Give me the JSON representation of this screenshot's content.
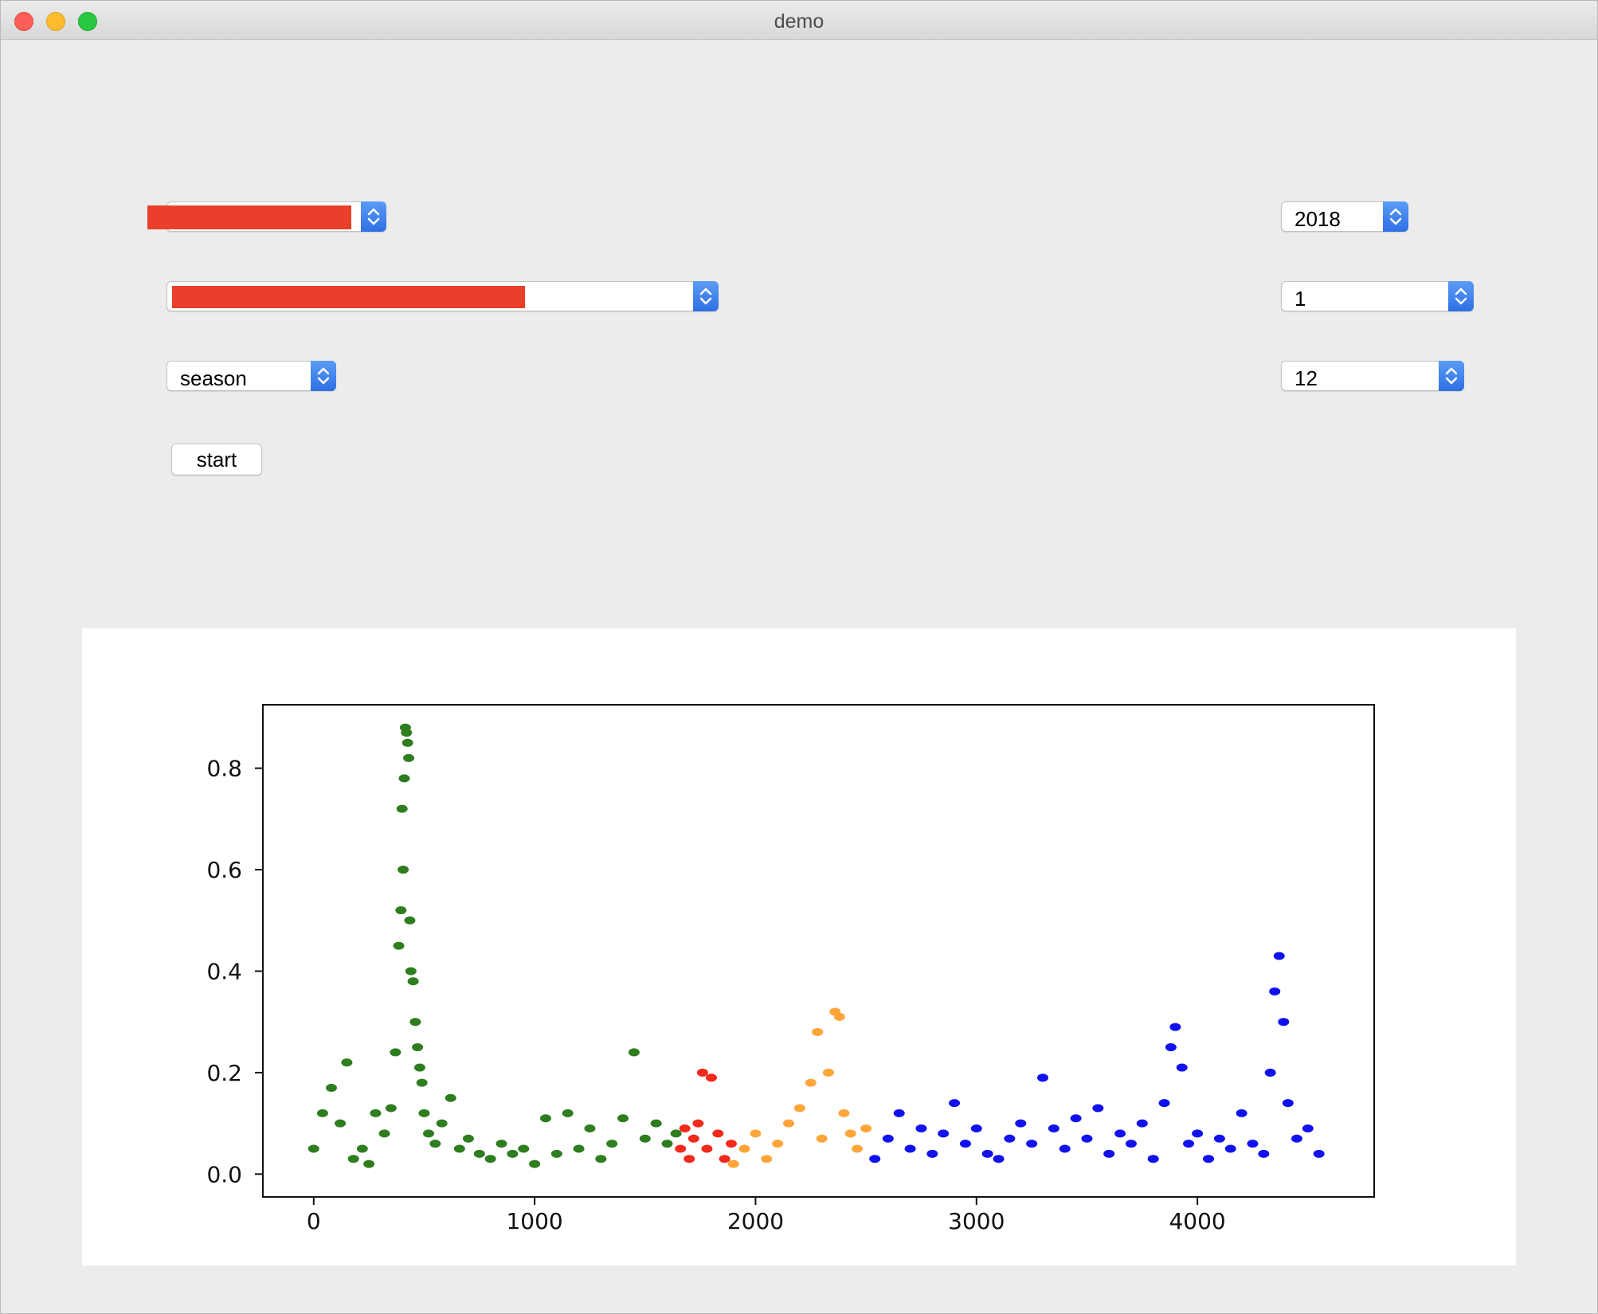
{
  "window": {
    "title": "demo"
  },
  "controls": {
    "left": {
      "select1": {
        "value": ""
      },
      "select2": {
        "value": ""
      },
      "group_select": {
        "value": "season"
      },
      "start_button": "start"
    },
    "right": {
      "year_select": {
        "value": "2018"
      },
      "month_start_select": {
        "value": "1"
      },
      "month_end_select": {
        "value": "12"
      }
    }
  },
  "colors": {
    "red_redaction": "#ea3f2a",
    "accent_blue": "#3478f6"
  },
  "chart_data": {
    "type": "scatter",
    "xlim": [
      -230,
      4800
    ],
    "ylim": [
      -0.045,
      0.925
    ],
    "xticks": [
      0,
      1000,
      2000,
      3000,
      4000
    ],
    "xtick_labels": [
      "0",
      "1000",
      "2000",
      "3000",
      "4000"
    ],
    "yticks": [
      0.0,
      0.2,
      0.4,
      0.6,
      0.8
    ],
    "ytick_labels": [
      "0.0",
      "0.2",
      "0.4",
      "0.6",
      "0.8"
    ],
    "grid": false,
    "series": [
      {
        "color": "#2e7d1f",
        "x": [
          0,
          40,
          80,
          120,
          150,
          180,
          220,
          250,
          280,
          320,
          350,
          370,
          385,
          395,
          400,
          405,
          410,
          415,
          420,
          425,
          430,
          435,
          440,
          450,
          460,
          470,
          480,
          490,
          500,
          520,
          550,
          580,
          620,
          660,
          700,
          750,
          800,
          850,
          900,
          950,
          1000,
          1050,
          1100,
          1150,
          1200,
          1250,
          1300,
          1350,
          1400,
          1450,
          1500,
          1550,
          1600,
          1640
        ],
        "y": [
          0.05,
          0.12,
          0.17,
          0.1,
          0.22,
          0.03,
          0.05,
          0.02,
          0.12,
          0.08,
          0.13,
          0.24,
          0.45,
          0.52,
          0.72,
          0.6,
          0.78,
          0.88,
          0.87,
          0.85,
          0.82,
          0.5,
          0.4,
          0.38,
          0.3,
          0.25,
          0.21,
          0.18,
          0.12,
          0.08,
          0.06,
          0.1,
          0.15,
          0.05,
          0.07,
          0.04,
          0.03,
          0.06,
          0.04,
          0.05,
          0.02,
          0.11,
          0.04,
          0.12,
          0.05,
          0.09,
          0.03,
          0.06,
          0.11,
          0.24,
          0.07,
          0.1,
          0.06,
          0.08
        ]
      },
      {
        "color": "#f22a1c",
        "x": [
          1660,
          1680,
          1700,
          1720,
          1740,
          1760,
          1780,
          1800,
          1830,
          1860,
          1890
        ],
        "y": [
          0.05,
          0.09,
          0.03,
          0.07,
          0.1,
          0.2,
          0.05,
          0.19,
          0.08,
          0.03,
          0.06
        ]
      },
      {
        "color": "#ffa53a",
        "x": [
          1900,
          1950,
          2000,
          2050,
          2100,
          2150,
          2200,
          2250,
          2280,
          2300,
          2330,
          2360,
          2380,
          2400,
          2430,
          2460,
          2500
        ],
        "y": [
          0.02,
          0.05,
          0.08,
          0.03,
          0.06,
          0.1,
          0.13,
          0.18,
          0.28,
          0.07,
          0.2,
          0.32,
          0.31,
          0.12,
          0.08,
          0.05,
          0.09
        ]
      },
      {
        "color": "#1111ee",
        "x": [
          2540,
          2600,
          2650,
          2700,
          2750,
          2800,
          2850,
          2900,
          2950,
          3000,
          3050,
          3100,
          3150,
          3200,
          3250,
          3300,
          3350,
          3400,
          3450,
          3500,
          3550,
          3600,
          3650,
          3700,
          3750,
          3800,
          3850,
          3880,
          3900,
          3930,
          3960,
          4000,
          4050,
          4100,
          4150,
          4200,
          4250,
          4300,
          4330,
          4350,
          4370,
          4390,
          4410,
          4450,
          4500,
          4550
        ],
        "y": [
          0.03,
          0.07,
          0.12,
          0.05,
          0.09,
          0.04,
          0.08,
          0.14,
          0.06,
          0.09,
          0.04,
          0.03,
          0.07,
          0.1,
          0.06,
          0.19,
          0.09,
          0.05,
          0.11,
          0.07,
          0.13,
          0.04,
          0.08,
          0.06,
          0.1,
          0.03,
          0.14,
          0.25,
          0.29,
          0.21,
          0.06,
          0.08,
          0.03,
          0.07,
          0.05,
          0.12,
          0.06,
          0.04,
          0.2,
          0.36,
          0.43,
          0.3,
          0.14,
          0.07,
          0.09,
          0.04
        ]
      }
    ]
  }
}
